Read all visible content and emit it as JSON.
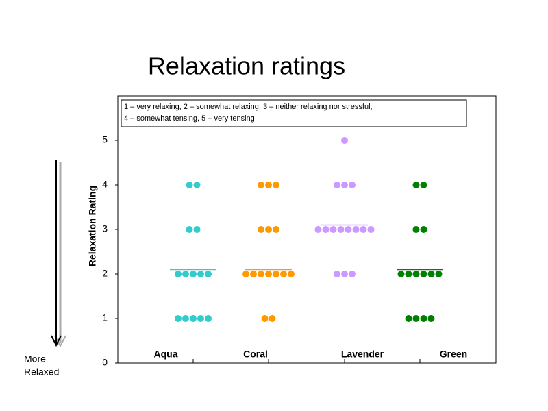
{
  "chart_data": {
    "type": "dot",
    "title": "Relaxation ratings",
    "y_label": "Relaxation Rating",
    "legend_note": [
      "1 – very relaxing, 2 – somewhat relaxing, 3 – neither relaxing nor stressful,",
      "4 – somewhat tensing,  5 – very tensing"
    ],
    "side_note": [
      "More",
      "Relaxed"
    ],
    "ylim": [
      0,
      6
    ],
    "yticks": [
      0,
      1,
      2,
      3,
      4,
      5
    ],
    "grid": false,
    "series": [
      {
        "name": "Aqua",
        "color": "#33cccc",
        "median": 2.1,
        "values": [
          1,
          1,
          1,
          1,
          1,
          2,
          2,
          2,
          2,
          2,
          3,
          3,
          4,
          4
        ]
      },
      {
        "name": "Coral",
        "color": "#ff9900",
        "median": 2.1,
        "values": [
          1,
          1,
          2,
          2,
          2,
          2,
          2,
          2,
          2,
          3,
          3,
          3,
          4,
          4,
          4
        ]
      },
      {
        "name": "Lavender",
        "color": "#cc99ff",
        "median": 3.1,
        "values": [
          2,
          2,
          2,
          3,
          3,
          3,
          3,
          3,
          3,
          3,
          3,
          4,
          4,
          4,
          5
        ]
      },
      {
        "name": "Green",
        "color": "#008000",
        "median": 2.1,
        "values": [
          1,
          1,
          1,
          1,
          2,
          2,
          2,
          2,
          2,
          2,
          3,
          3,
          4,
          4
        ]
      }
    ]
  }
}
